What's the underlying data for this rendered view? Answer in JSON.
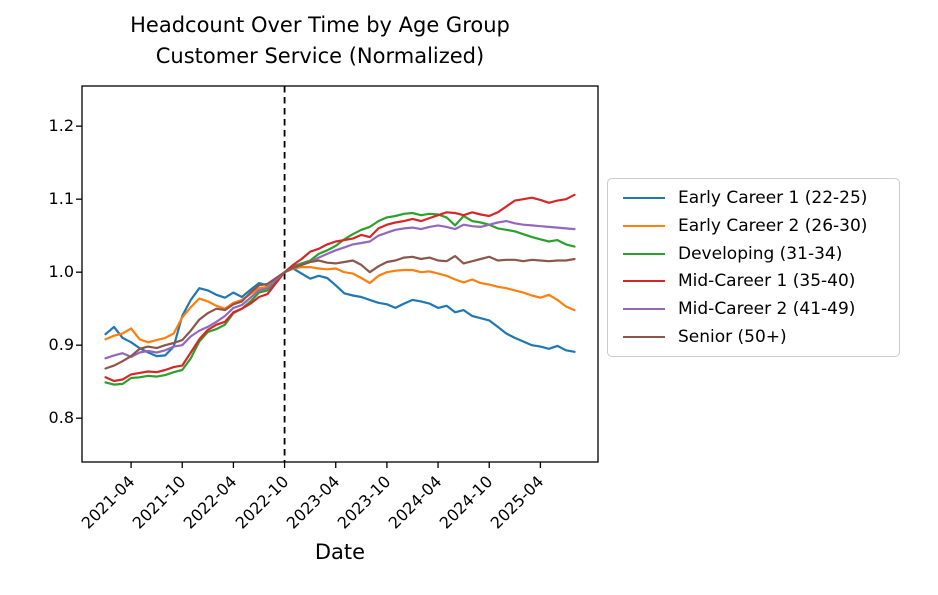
{
  "figure": {
    "title_line1": "Headcount Over Time by Age Group",
    "title_line2": "Customer Service (Normalized)",
    "xlabel": "Date"
  },
  "chart_data": {
    "type": "line",
    "title": "Headcount Over Time by Age Group",
    "subtitle": "Customer Service (Normalized)",
    "xlabel": "Date",
    "ylabel": "",
    "grid": false,
    "legend_position": "right-outside",
    "ylim": [
      0.74,
      1.255
    ],
    "y_ticks": [
      0.8,
      0.9,
      1.0,
      1.1,
      1.2
    ],
    "x_tick_labels": [
      "2021-04",
      "2021-10",
      "2022-04",
      "2022-10",
      "2023-04",
      "2023-10",
      "2024-04",
      "2024-10",
      "2025-04"
    ],
    "vline": {
      "x": "2022-10",
      "style": "dashed",
      "color": "#000000"
    },
    "x": [
      "2021-01",
      "2021-02",
      "2021-03",
      "2021-04",
      "2021-05",
      "2021-06",
      "2021-07",
      "2021-08",
      "2021-09",
      "2021-10",
      "2021-11",
      "2021-12",
      "2022-01",
      "2022-02",
      "2022-03",
      "2022-04",
      "2022-05",
      "2022-06",
      "2022-07",
      "2022-08",
      "2022-09",
      "2022-10",
      "2022-11",
      "2022-12",
      "2023-01",
      "2023-02",
      "2023-03",
      "2023-04",
      "2023-05",
      "2023-06",
      "2023-07",
      "2023-08",
      "2023-09",
      "2023-10",
      "2023-11",
      "2023-12",
      "2024-01",
      "2024-02",
      "2024-03",
      "2024-04",
      "2024-05",
      "2024-06",
      "2024-07",
      "2024-08",
      "2024-09",
      "2024-10",
      "2024-11",
      "2024-12",
      "2025-01",
      "2025-02",
      "2025-03",
      "2025-04",
      "2025-05",
      "2025-06",
      "2025-07",
      "2025-08"
    ],
    "series": [
      {
        "name": "Early Career 1 (22-25)",
        "color": "#1f77b4",
        "values": [
          0.915,
          0.925,
          0.91,
          0.904,
          0.896,
          0.89,
          0.885,
          0.886,
          0.898,
          0.94,
          0.962,
          0.978,
          0.975,
          0.969,
          0.965,
          0.972,
          0.966,
          0.976,
          0.985,
          0.982,
          0.991,
          1.0,
          1.005,
          0.998,
          0.991,
          0.995,
          0.992,
          0.982,
          0.971,
          0.968,
          0.966,
          0.962,
          0.958,
          0.956,
          0.951,
          0.957,
          0.962,
          0.96,
          0.957,
          0.951,
          0.954,
          0.945,
          0.948,
          0.94,
          0.937,
          0.934,
          0.925,
          0.916,
          0.91,
          0.905,
          0.9,
          0.898,
          0.895,
          0.899,
          0.893,
          0.891
        ]
      },
      {
        "name": "Early Career 2 (26-30)",
        "color": "#ff7f0e",
        "values": [
          0.908,
          0.913,
          0.916,
          0.923,
          0.908,
          0.904,
          0.907,
          0.91,
          0.916,
          0.938,
          0.952,
          0.964,
          0.96,
          0.954,
          0.95,
          0.958,
          0.962,
          0.97,
          0.978,
          0.98,
          0.991,
          1.0,
          1.005,
          1.007,
          1.007,
          1.005,
          1.004,
          1.005,
          1.0,
          0.998,
          0.992,
          0.985,
          0.995,
          1.0,
          1.002,
          1.003,
          1.003,
          1.0,
          1.001,
          0.998,
          0.995,
          0.99,
          0.986,
          0.99,
          0.985,
          0.983,
          0.98,
          0.978,
          0.975,
          0.972,
          0.968,
          0.965,
          0.969,
          0.962,
          0.953,
          0.948
        ]
      },
      {
        "name": "Developing (31-34)",
        "color": "#2ca02c",
        "values": [
          0.849,
          0.846,
          0.847,
          0.855,
          0.856,
          0.858,
          0.857,
          0.859,
          0.863,
          0.866,
          0.882,
          0.905,
          0.918,
          0.922,
          0.928,
          0.944,
          0.95,
          0.96,
          0.972,
          0.975,
          0.988,
          1.0,
          1.008,
          1.012,
          1.016,
          1.025,
          1.03,
          1.036,
          1.045,
          1.052,
          1.058,
          1.062,
          1.07,
          1.075,
          1.077,
          1.08,
          1.081,
          1.078,
          1.08,
          1.079,
          1.075,
          1.064,
          1.077,
          1.07,
          1.068,
          1.065,
          1.06,
          1.058,
          1.056,
          1.052,
          1.048,
          1.045,
          1.042,
          1.044,
          1.038,
          1.035
        ]
      },
      {
        "name": "Mid-Career 1 (35-40)",
        "color": "#d62728",
        "values": [
          0.856,
          0.851,
          0.853,
          0.86,
          0.862,
          0.864,
          0.863,
          0.866,
          0.87,
          0.872,
          0.89,
          0.908,
          0.921,
          0.928,
          0.932,
          0.945,
          0.95,
          0.957,
          0.966,
          0.97,
          0.985,
          1.0,
          1.01,
          1.018,
          1.028,
          1.032,
          1.038,
          1.042,
          1.044,
          1.046,
          1.051,
          1.048,
          1.06,
          1.065,
          1.068,
          1.07,
          1.073,
          1.07,
          1.074,
          1.078,
          1.082,
          1.081,
          1.078,
          1.082,
          1.079,
          1.077,
          1.082,
          1.09,
          1.098,
          1.1,
          1.102,
          1.099,
          1.095,
          1.098,
          1.1,
          1.106
        ]
      },
      {
        "name": "Mid-Career 2 (41-49)",
        "color": "#9467bd",
        "values": [
          0.882,
          0.886,
          0.889,
          0.884,
          0.89,
          0.892,
          0.89,
          0.893,
          0.898,
          0.9,
          0.912,
          0.92,
          0.925,
          0.932,
          0.94,
          0.951,
          0.955,
          0.965,
          0.975,
          0.978,
          0.99,
          1.0,
          1.006,
          1.01,
          1.014,
          1.02,
          1.025,
          1.03,
          1.034,
          1.038,
          1.04,
          1.042,
          1.05,
          1.054,
          1.058,
          1.06,
          1.061,
          1.059,
          1.062,
          1.064,
          1.062,
          1.059,
          1.065,
          1.063,
          1.062,
          1.065,
          1.068,
          1.07,
          1.067,
          1.065,
          1.064,
          1.063,
          1.062,
          1.061,
          1.06,
          1.059
        ]
      },
      {
        "name": "Senior (50+)",
        "color": "#8c564b",
        "values": [
          0.868,
          0.872,
          0.878,
          0.885,
          0.895,
          0.898,
          0.896,
          0.9,
          0.903,
          0.907,
          0.92,
          0.935,
          0.944,
          0.95,
          0.948,
          0.956,
          0.96,
          0.972,
          0.982,
          0.984,
          0.992,
          1.0,
          1.006,
          1.01,
          1.014,
          1.016,
          1.013,
          1.012,
          1.014,
          1.016,
          1.01,
          1.0,
          1.008,
          1.014,
          1.016,
          1.02,
          1.021,
          1.018,
          1.02,
          1.016,
          1.015,
          1.022,
          1.012,
          1.015,
          1.018,
          1.021,
          1.016,
          1.017,
          1.017,
          1.015,
          1.017,
          1.016,
          1.015,
          1.016,
          1.016,
          1.018
        ]
      }
    ]
  }
}
